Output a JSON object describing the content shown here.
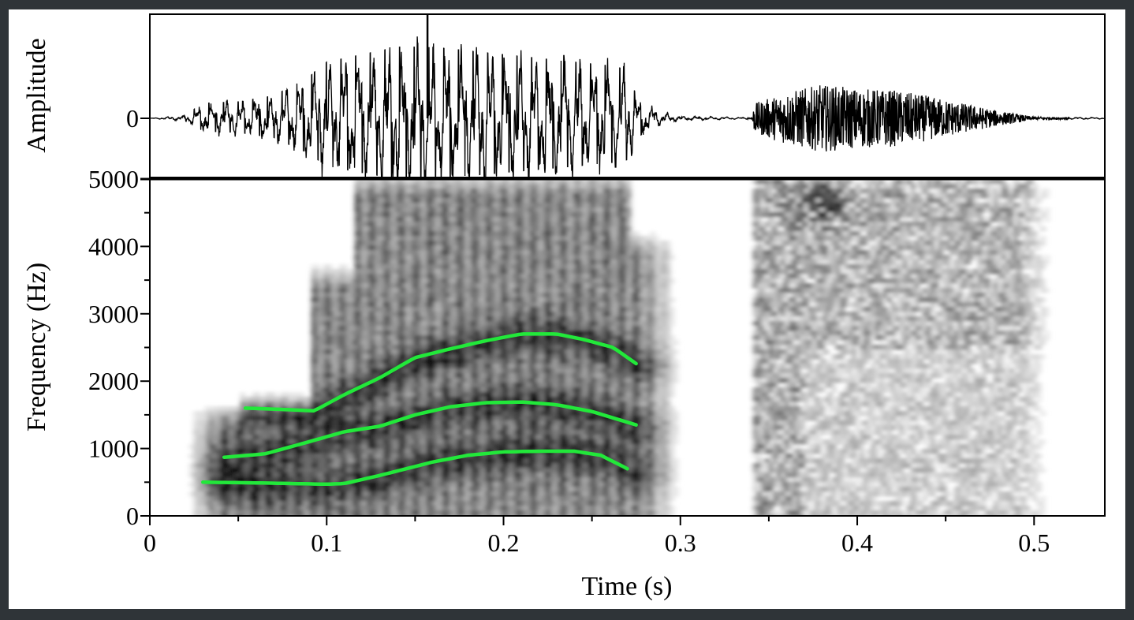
{
  "chart_data": [
    {
      "type": "line",
      "name": "waveform",
      "ylabel": "Amplitude",
      "y_ticks": [
        0
      ],
      "xlim": [
        0,
        0.54
      ],
      "envelope": {
        "x": [
          0.0,
          0.02,
          0.03,
          0.05,
          0.07,
          0.09,
          0.1,
          0.12,
          0.14,
          0.16,
          0.18,
          0.2,
          0.22,
          0.24,
          0.26,
          0.27,
          0.275,
          0.29,
          0.3,
          0.34,
          0.342,
          0.36,
          0.38,
          0.4,
          0.42,
          0.44,
          0.46,
          0.48,
          0.5,
          0.54
        ],
        "upper": [
          0.0,
          0.04,
          0.2,
          0.22,
          0.3,
          0.55,
          0.75,
          0.85,
          0.95,
          0.95,
          0.9,
          0.85,
          0.8,
          0.75,
          0.7,
          0.65,
          0.3,
          0.08,
          0.03,
          0.01,
          0.2,
          0.35,
          0.45,
          0.4,
          0.38,
          0.3,
          0.2,
          0.1,
          0.02,
          0.01
        ]
      }
    },
    {
      "type": "heatmap",
      "name": "spectrogram",
      "xlabel": "Time (s)",
      "ylabel": "Frequency (Hz)",
      "xlim": [
        0,
        0.54
      ],
      "ylim": [
        0,
        5000
      ],
      "x_ticks": [
        0,
        0.1,
        0.2,
        0.3,
        0.4,
        0.5
      ],
      "x_tick_labels": [
        "0",
        "0.1",
        "0.2",
        "0.3",
        "0.4",
        "0.5"
      ],
      "y_ticks": [
        0,
        1000,
        2000,
        3000,
        4000,
        5000
      ],
      "y_tick_labels": [
        "0",
        "1000",
        "2000",
        "3000",
        "4000",
        "5000"
      ],
      "voiced_region": [
        0.02,
        0.3
      ],
      "fricative_region": [
        0.34,
        0.5
      ],
      "colormap": [
        "#ffffff",
        "#000000"
      ],
      "formant_color": "#22e83a",
      "formants": [
        {
          "x": [
            0.03,
            0.06,
            0.1,
            0.11,
            0.13,
            0.16,
            0.18,
            0.2,
            0.22,
            0.24,
            0.255,
            0.27
          ],
          "y": [
            500,
            490,
            470,
            480,
            600,
            800,
            900,
            950,
            960,
            960,
            900,
            700
          ]
        },
        {
          "x": [
            0.042,
            0.065,
            0.09,
            0.11,
            0.13,
            0.15,
            0.17,
            0.19,
            0.21,
            0.23,
            0.25,
            0.275
          ],
          "y": [
            870,
            920,
            1100,
            1250,
            1330,
            1500,
            1620,
            1680,
            1690,
            1650,
            1550,
            1350
          ]
        },
        {
          "x": [
            0.054,
            0.075,
            0.093,
            0.11,
            0.13,
            0.15,
            0.17,
            0.19,
            0.21,
            0.23,
            0.245,
            0.262,
            0.275
          ],
          "y": [
            1600,
            1580,
            1560,
            1800,
            2050,
            2350,
            2480,
            2600,
            2700,
            2700,
            2620,
            2500,
            2260
          ]
        }
      ]
    }
  ]
}
